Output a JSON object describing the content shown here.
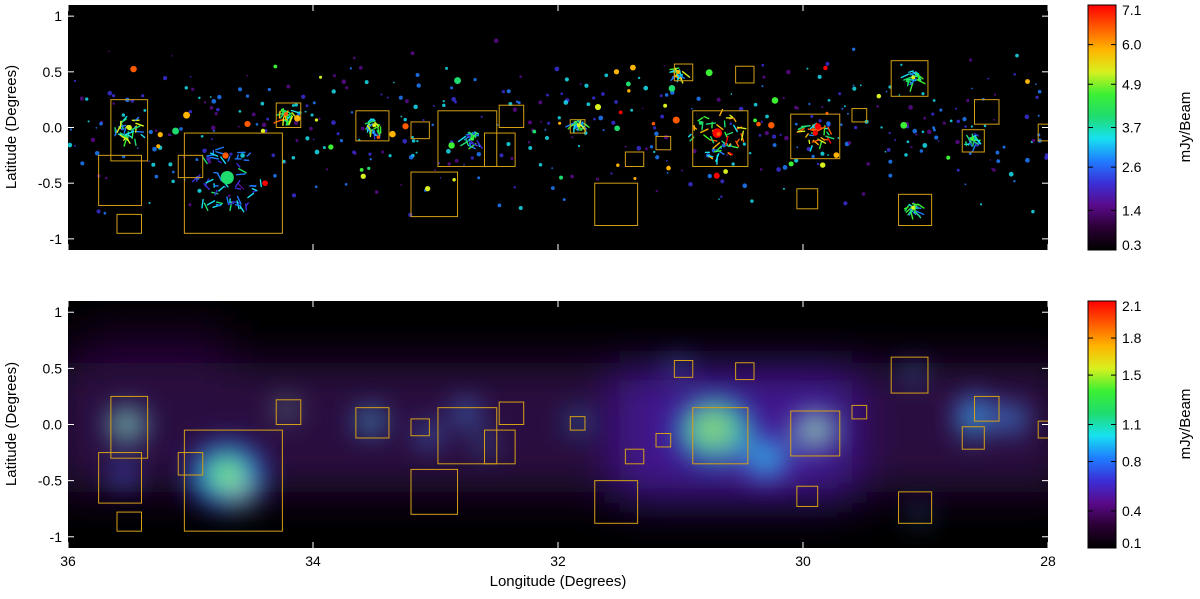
{
  "colors": {
    "box": "#d4a017",
    "panel_bg": "#000000",
    "colormap": [
      "#000000",
      "#2a0033",
      "#5a0a8a",
      "#3a2fd8",
      "#1f7dff",
      "#17e1f0",
      "#1fdc6e",
      "#3cf033",
      "#d8f01e",
      "#ffb400",
      "#ff5a00",
      "#ff0000"
    ]
  },
  "chart_data": [
    {
      "type": "heatmap",
      "name": "top-panel",
      "title": "",
      "xlabel": "",
      "ylabel": "Latitude (Degrees)",
      "xlim": [
        36,
        28
      ],
      "ylim": [
        -1.1,
        1.1
      ],
      "yticks": [
        "1",
        "0.5",
        "0.0",
        "-0.5",
        "-1"
      ],
      "colorbar": {
        "label": "mJy/Beam",
        "ticks": [
          "0.3",
          "1.4",
          "2.6",
          "3.7",
          "4.9",
          "6.0",
          "7.1"
        ],
        "min": 0.3,
        "max": 7.1
      },
      "boxes": [
        {
          "l": [
            35.65,
            35.35
          ],
          "b": [
            -0.3,
            0.25
          ]
        },
        {
          "l": [
            35.75,
            35.4
          ],
          "b": [
            -0.7,
            -0.25
          ]
        },
        {
          "l": [
            35.6,
            35.4
          ],
          "b": [
            -0.95,
            -0.78
          ]
        },
        {
          "l": [
            35.05,
            34.25
          ],
          "b": [
            -0.95,
            -0.05
          ]
        },
        {
          "l": [
            35.1,
            34.9
          ],
          "b": [
            -0.45,
            -0.25
          ]
        },
        {
          "l": [
            34.3,
            34.1
          ],
          "b": [
            0.0,
            0.22
          ]
        },
        {
          "l": [
            33.65,
            33.38
          ],
          "b": [
            -0.12,
            0.15
          ]
        },
        {
          "l": [
            33.2,
            33.05
          ],
          "b": [
            -0.1,
            0.05
          ]
        },
        {
          "l": [
            33.2,
            32.82
          ],
          "b": [
            -0.8,
            -0.4
          ]
        },
        {
          "l": [
            32.98,
            32.5
          ],
          "b": [
            -0.35,
            0.15
          ]
        },
        {
          "l": [
            32.6,
            32.35
          ],
          "b": [
            -0.35,
            -0.05
          ]
        },
        {
          "l": [
            32.48,
            32.28
          ],
          "b": [
            0.0,
            0.2
          ]
        },
        {
          "l": [
            31.9,
            31.78
          ],
          "b": [
            -0.05,
            0.07
          ]
        },
        {
          "l": [
            31.7,
            31.35
          ],
          "b": [
            -0.88,
            -0.5
          ]
        },
        {
          "l": [
            31.45,
            31.3
          ],
          "b": [
            -0.35,
            -0.22
          ]
        },
        {
          "l": [
            31.2,
            31.08
          ],
          "b": [
            -0.2,
            -0.08
          ]
        },
        {
          "l": [
            31.05,
            30.9
          ],
          "b": [
            0.42,
            0.57
          ]
        },
        {
          "l": [
            30.9,
            30.45
          ],
          "b": [
            -0.35,
            0.15
          ]
        },
        {
          "l": [
            30.55,
            30.4
          ],
          "b": [
            0.4,
            0.55
          ]
        },
        {
          "l": [
            30.1,
            29.7
          ],
          "b": [
            -0.28,
            0.12
          ]
        },
        {
          "l": [
            30.05,
            29.88
          ],
          "b": [
            -0.73,
            -0.55
          ]
        },
        {
          "l": [
            29.6,
            29.48
          ],
          "b": [
            0.05,
            0.17
          ]
        },
        {
          "l": [
            29.28,
            28.98
          ],
          "b": [
            0.28,
            0.6
          ]
        },
        {
          "l": [
            29.22,
            28.95
          ],
          "b": [
            -0.88,
            -0.6
          ]
        },
        {
          "l": [
            28.7,
            28.52
          ],
          "b": [
            -0.22,
            -0.02
          ]
        },
        {
          "l": [
            28.6,
            28.4
          ],
          "b": [
            0.03,
            0.25
          ]
        },
        {
          "l": [
            28.08,
            27.98
          ],
          "b": [
            -0.12,
            0.03
          ]
        }
      ],
      "sources": [
        {
          "l": 35.5,
          "b": 0.0,
          "s": 0.12,
          "v": 0.75
        },
        {
          "l": 34.7,
          "b": -0.45,
          "s": 0.3,
          "v": 0.55
        },
        {
          "l": 34.22,
          "b": 0.12,
          "s": 0.06,
          "v": 0.9
        },
        {
          "l": 33.5,
          "b": 0.02,
          "s": 0.07,
          "v": 0.75
        },
        {
          "l": 32.7,
          "b": -0.1,
          "s": 0.07,
          "v": 0.6
        },
        {
          "l": 31.83,
          "b": 0.02,
          "s": 0.05,
          "v": 0.75
        },
        {
          "l": 30.7,
          "b": -0.05,
          "s": 0.22,
          "v": 1.0
        },
        {
          "l": 29.9,
          "b": -0.05,
          "s": 0.12,
          "v": 1.0
        },
        {
          "l": 31.02,
          "b": 0.5,
          "s": 0.05,
          "v": 0.8
        },
        {
          "l": 29.1,
          "b": -0.72,
          "s": 0.05,
          "v": 0.7
        },
        {
          "l": 28.62,
          "b": -0.1,
          "s": 0.06,
          "v": 0.65
        },
        {
          "l": 29.1,
          "b": 0.45,
          "s": 0.06,
          "v": 0.7
        }
      ]
    },
    {
      "type": "heatmap",
      "name": "bottom-panel",
      "title": "",
      "xlabel": "Longitude (Degrees)",
      "ylabel": "Latitude (Degrees)",
      "xlim": [
        36,
        28
      ],
      "ylim": [
        -1.1,
        1.1
      ],
      "xticks": [
        "36",
        "34",
        "32",
        "30",
        "28"
      ],
      "yticks": [
        "1",
        "0.5",
        "0.0",
        "-0.5",
        "-1"
      ],
      "colorbar": {
        "label": "mJy/Beam",
        "ticks": [
          "0.1",
          "0.4",
          "0.8",
          "1.1",
          "1.5",
          "1.8",
          "2.1"
        ],
        "min": 0.1,
        "max": 2.1
      },
      "sources": [
        {
          "l": 35.52,
          "b": 0.0,
          "s": 0.14,
          "v": 0.82
        },
        {
          "l": 35.55,
          "b": -0.45,
          "s": 0.1,
          "v": 0.45
        },
        {
          "l": 34.7,
          "b": -0.45,
          "s": 0.28,
          "v": 0.75
        },
        {
          "l": 34.6,
          "b": -0.6,
          "s": 0.12,
          "v": 0.95
        },
        {
          "l": 34.22,
          "b": 0.14,
          "s": 0.07,
          "v": 1.0
        },
        {
          "l": 33.53,
          "b": 0.03,
          "s": 0.1,
          "v": 0.72
        },
        {
          "l": 33.05,
          "b": -0.1,
          "s": 0.09,
          "v": 0.5
        },
        {
          "l": 32.75,
          "b": 0.1,
          "s": 0.1,
          "v": 0.5
        },
        {
          "l": 32.6,
          "b": -0.18,
          "s": 0.06,
          "v": 0.7
        },
        {
          "l": 31.83,
          "b": 0.02,
          "s": 0.07,
          "v": 0.65
        },
        {
          "l": 31.02,
          "b": 0.5,
          "s": 0.07,
          "v": 0.55
        },
        {
          "l": 30.72,
          "b": -0.05,
          "s": 0.28,
          "v": 1.0
        },
        {
          "l": 30.68,
          "b": -0.08,
          "s": 0.12,
          "v": 1.0
        },
        {
          "l": 30.3,
          "b": -0.3,
          "s": 0.2,
          "v": 0.5
        },
        {
          "l": 29.9,
          "b": -0.05,
          "s": 0.16,
          "v": 0.95
        },
        {
          "l": 29.1,
          "b": 0.45,
          "s": 0.07,
          "v": 0.55
        },
        {
          "l": 29.05,
          "b": -0.8,
          "s": 0.06,
          "v": 0.5
        },
        {
          "l": 28.6,
          "b": 0.1,
          "s": 0.15,
          "v": 0.55
        },
        {
          "l": 28.62,
          "b": -0.05,
          "s": 0.07,
          "v": 0.7
        },
        {
          "l": 28.3,
          "b": 0.05,
          "s": 0.12,
          "v": 0.5
        }
      ]
    }
  ]
}
